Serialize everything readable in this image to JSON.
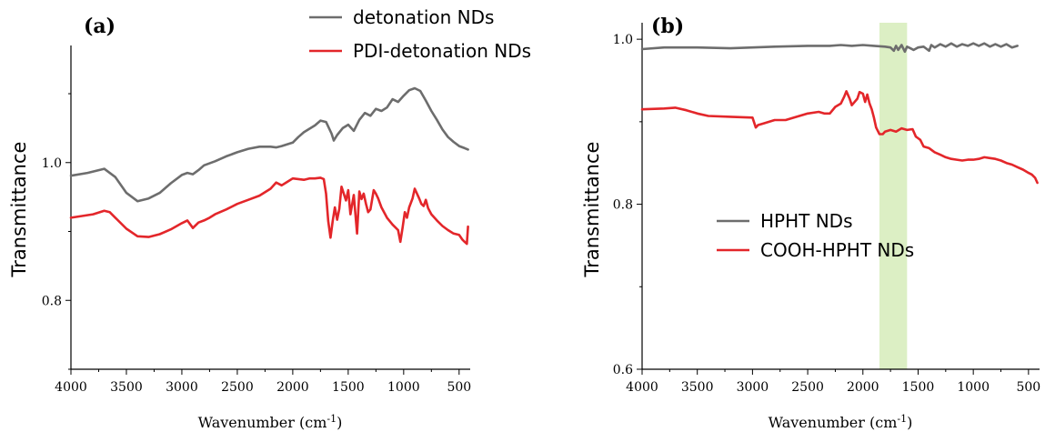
{
  "chart_data": [
    {
      "type": "line",
      "panel_label": "(a)",
      "xlabel": "Wavenumber (cm",
      "xlabel_sup": "-1",
      "xlabel_end": ")",
      "ylabel": "Transmittance",
      "xlim": [
        4000,
        400
      ],
      "ylim": [
        0.7,
        1.17
      ],
      "x_ticks": [
        4000,
        3500,
        3000,
        2500,
        2000,
        1500,
        1000,
        500
      ],
      "y_ticks": [
        {
          "value": 0.8,
          "label": "0.8"
        },
        {
          "value": 1.0,
          "label": "1.0"
        }
      ],
      "legend_position": "top-right",
      "series": [
        {
          "name": "detonation NDs",
          "color": "#6d6d6d",
          "x": [
            4000,
            3850,
            3700,
            3600,
            3500,
            3400,
            3300,
            3200,
            3100,
            3000,
            2950,
            2900,
            2850,
            2800,
            2700,
            2600,
            2500,
            2400,
            2300,
            2200,
            2150,
            2100,
            2000,
            1950,
            1900,
            1800,
            1750,
            1700,
            1650,
            1630,
            1600,
            1550,
            1500,
            1450,
            1400,
            1350,
            1300,
            1250,
            1200,
            1150,
            1100,
            1050,
            1000,
            950,
            900,
            850,
            800,
            750,
            700,
            650,
            600,
            550,
            500,
            450,
            420
          ],
          "y": [
            0.981,
            0.985,
            0.991,
            0.979,
            0.956,
            0.944,
            0.948,
            0.956,
            0.97,
            0.982,
            0.985,
            0.983,
            0.989,
            0.996,
            1.002,
            1.009,
            1.015,
            1.02,
            1.023,
            1.023,
            1.022,
            1.024,
            1.029,
            1.037,
            1.044,
            1.054,
            1.061,
            1.059,
            1.042,
            1.032,
            1.04,
            1.05,
            1.055,
            1.046,
            1.062,
            1.072,
            1.068,
            1.078,
            1.075,
            1.08,
            1.092,
            1.088,
            1.097,
            1.105,
            1.108,
            1.104,
            1.09,
            1.075,
            1.062,
            1.048,
            1.037,
            1.03,
            1.024,
            1.021,
            1.019
          ]
        },
        {
          "name": "PDI-detonation NDs",
          "color": "#e3262a",
          "x": [
            4000,
            3800,
            3700,
            3650,
            3600,
            3500,
            3400,
            3300,
            3200,
            3100,
            3000,
            2950,
            2900,
            2850,
            2800,
            2750,
            2700,
            2600,
            2500,
            2400,
            2300,
            2200,
            2150,
            2100,
            2050,
            2000,
            1950,
            1900,
            1850,
            1800,
            1750,
            1720,
            1700,
            1680,
            1660,
            1640,
            1620,
            1600,
            1580,
            1560,
            1520,
            1500,
            1480,
            1450,
            1420,
            1400,
            1380,
            1360,
            1340,
            1320,
            1300,
            1270,
            1250,
            1230,
            1200,
            1150,
            1100,
            1050,
            1030,
            1010,
            990,
            970,
            950,
            920,
            900,
            880,
            860,
            840,
            820,
            800,
            780,
            750,
            700,
            650,
            600,
            550,
            500,
            470,
            450,
            430,
            420
          ],
          "y": [
            0.92,
            0.925,
            0.93,
            0.928,
            0.92,
            0.904,
            0.893,
            0.892,
            0.896,
            0.903,
            0.912,
            0.916,
            0.905,
            0.913,
            0.916,
            0.92,
            0.925,
            0.932,
            0.94,
            0.946,
            0.952,
            0.962,
            0.971,
            0.967,
            0.972,
            0.977,
            0.976,
            0.975,
            0.977,
            0.977,
            0.978,
            0.976,
            0.955,
            0.915,
            0.891,
            0.915,
            0.935,
            0.917,
            0.933,
            0.965,
            0.945,
            0.96,
            0.925,
            0.953,
            0.897,
            0.958,
            0.947,
            0.955,
            0.94,
            0.928,
            0.932,
            0.96,
            0.955,
            0.948,
            0.935,
            0.92,
            0.91,
            0.902,
            0.885,
            0.905,
            0.928,
            0.92,
            0.935,
            0.948,
            0.962,
            0.955,
            0.948,
            0.94,
            0.937,
            0.946,
            0.934,
            0.925,
            0.916,
            0.908,
            0.902,
            0.897,
            0.895,
            0.888,
            0.885,
            0.882,
            0.907
          ]
        }
      ]
    },
    {
      "type": "line",
      "panel_label": "(b)",
      "xlabel": "Wavenumber (cm",
      "xlabel_sup": "-1",
      "xlabel_end": ")",
      "ylabel": "Transmittance",
      "xlim": [
        4000,
        400
      ],
      "ylim": [
        0.6,
        1.02
      ],
      "x_ticks": [
        4000,
        3500,
        3000,
        2500,
        2000,
        1500,
        1000,
        500
      ],
      "y_ticks": [
        {
          "value": 0.6,
          "label": "0.6"
        },
        {
          "value": 0.8,
          "label": "0.8"
        },
        {
          "value": 1.0,
          "label": "1.0"
        }
      ],
      "highlight_band": {
        "x_from": 1850,
        "x_to": 1600,
        "color": "#dcefc4"
      },
      "legend_position": "center",
      "series": [
        {
          "name": "HPHT NDs",
          "color": "#6d6d6d",
          "x": [
            4000,
            3800,
            3500,
            3200,
            3000,
            2800,
            2500,
            2300,
            2200,
            2100,
            2000,
            1900,
            1800,
            1750,
            1720,
            1700,
            1680,
            1650,
            1620,
            1600,
            1570,
            1540,
            1500,
            1450,
            1400,
            1380,
            1350,
            1300,
            1250,
            1200,
            1150,
            1100,
            1050,
            1000,
            950,
            900,
            850,
            800,
            750,
            700,
            650,
            600
          ],
          "y": [
            0.988,
            0.99,
            0.99,
            0.989,
            0.99,
            0.991,
            0.992,
            0.992,
            0.993,
            0.992,
            0.993,
            0.992,
            0.991,
            0.99,
            0.986,
            0.992,
            0.987,
            0.993,
            0.985,
            0.991,
            0.989,
            0.987,
            0.99,
            0.991,
            0.986,
            0.993,
            0.99,
            0.994,
            0.991,
            0.995,
            0.991,
            0.994,
            0.992,
            0.995,
            0.992,
            0.995,
            0.991,
            0.994,
            0.991,
            0.994,
            0.99,
            0.992
          ]
        },
        {
          "name": "COOH-HPHT NDs",
          "color": "#e3262a",
          "x": [
            4000,
            3800,
            3700,
            3600,
            3500,
            3400,
            3200,
            3000,
            2970,
            2950,
            2900,
            2850,
            2800,
            2700,
            2600,
            2500,
            2400,
            2350,
            2300,
            2250,
            2200,
            2170,
            2150,
            2120,
            2100,
            2050,
            2030,
            2000,
            1980,
            1960,
            1940,
            1920,
            1900,
            1880,
            1850,
            1820,
            1800,
            1750,
            1700,
            1650,
            1600,
            1550,
            1520,
            1500,
            1480,
            1450,
            1400,
            1350,
            1300,
            1250,
            1200,
            1150,
            1100,
            1050,
            1000,
            950,
            900,
            850,
            800,
            750,
            700,
            650,
            600,
            550,
            500,
            470,
            440,
            420
          ],
          "y": [
            0.915,
            0.916,
            0.917,
            0.914,
            0.91,
            0.907,
            0.906,
            0.905,
            0.893,
            0.896,
            0.898,
            0.9,
            0.902,
            0.902,
            0.906,
            0.91,
            0.912,
            0.91,
            0.91,
            0.918,
            0.922,
            0.93,
            0.937,
            0.928,
            0.92,
            0.928,
            0.936,
            0.934,
            0.924,
            0.933,
            0.922,
            0.915,
            0.905,
            0.893,
            0.885,
            0.885,
            0.888,
            0.89,
            0.888,
            0.892,
            0.89,
            0.891,
            0.882,
            0.88,
            0.878,
            0.87,
            0.868,
            0.863,
            0.86,
            0.857,
            0.855,
            0.854,
            0.853,
            0.854,
            0.854,
            0.855,
            0.857,
            0.856,
            0.855,
            0.853,
            0.85,
            0.848,
            0.845,
            0.842,
            0.838,
            0.836,
            0.832,
            0.826
          ]
        }
      ]
    }
  ]
}
